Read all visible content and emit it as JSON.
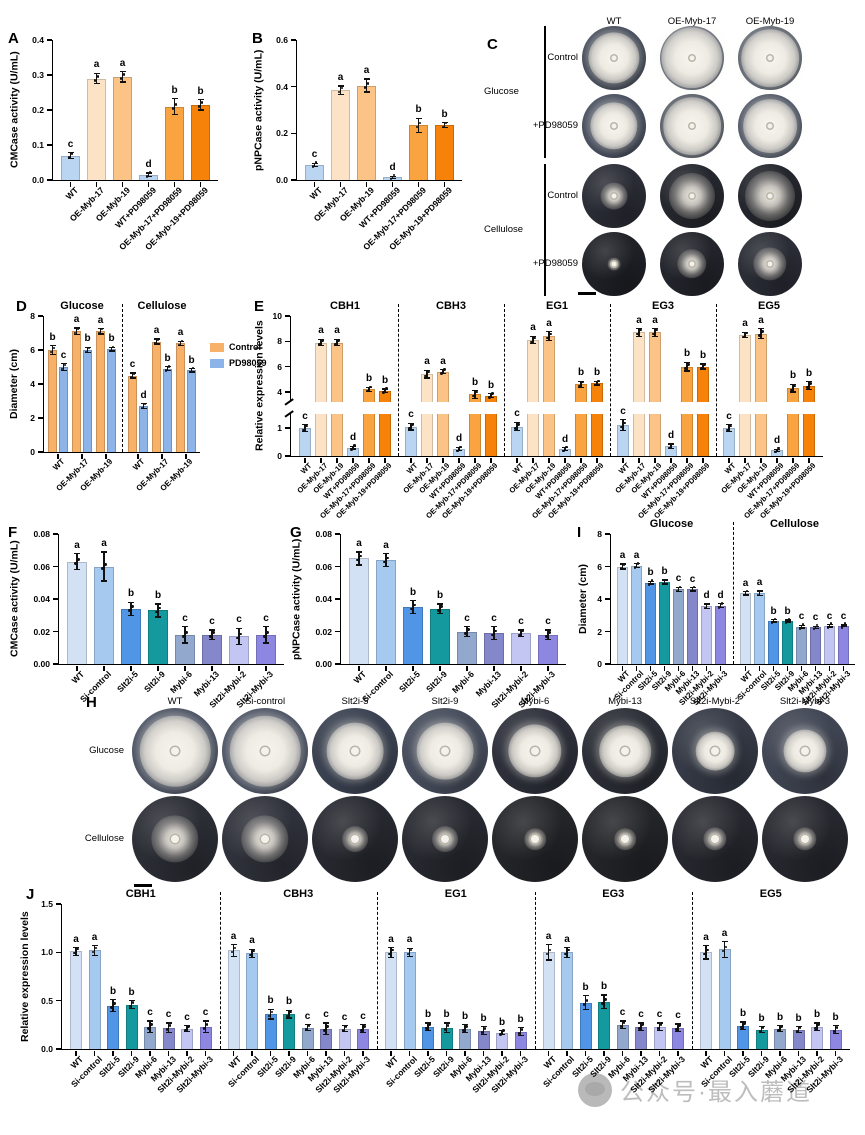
{
  "watermark": {
    "text": "公众号·最入蘑道"
  },
  "colors": {
    "treat6": [
      "#b9d5f2",
      "#fde3c6",
      "#fbc386",
      "#b9d5f2",
      "#f9a440",
      "#f6820a"
    ],
    "sil8": [
      "#d3e1f5",
      "#a6c9f0",
      "#5095e6",
      "#149a9e",
      "#92a8cd",
      "#8487ca",
      "#c3c6f3",
      "#8d87e2"
    ],
    "control_orange": "#f8b169",
    "pd_blue": "#8cb4e8"
  },
  "categories": {
    "treat6": [
      "WT",
      "OE-Myb-17",
      "OE-Myb-19",
      "WT+PD98059",
      "OE-Myb-17+PD98059",
      "OE-Myb-19+PD98059"
    ],
    "sil8": [
      "WT",
      "Si-control",
      "Slt2i-5",
      "Slt2i-9",
      "Mybi-6",
      "Mybi-13",
      "Slt2i-Mybi-2",
      "Slt2i-Mybi-3"
    ]
  },
  "chart_data": [
    {
      "panel": "A",
      "type": "bar",
      "ylabel": "CMCase activity (U/mL)",
      "ylim": [
        0,
        0.4
      ],
      "yticks": [
        "0.0",
        "0.1",
        "0.2",
        "0.3",
        "0.4"
      ],
      "palette": "treat6",
      "groups": [
        {
          "title": "",
          "categories_ref": "treat6",
          "values": [
            0.07,
            0.29,
            0.295,
            0.015,
            0.21,
            0.215
          ],
          "errors": [
            0.008,
            0.015,
            0.015,
            0.005,
            0.022,
            0.015
          ],
          "letters": [
            "c",
            "a",
            "a",
            "d",
            "b",
            "b"
          ]
        }
      ]
    },
    {
      "panel": "B",
      "type": "bar",
      "ylabel": "pNPCase activity (U/mL)",
      "ylim": [
        0,
        0.6
      ],
      "yticks": [
        "0.0",
        "0.2",
        "0.4",
        "0.6"
      ],
      "palette": "treat6",
      "groups": [
        {
          "title": "",
          "categories_ref": "treat6",
          "values": [
            0.065,
            0.385,
            0.405,
            0.012,
            0.235,
            0.235
          ],
          "errors": [
            0.006,
            0.018,
            0.028,
            0.004,
            0.03,
            0.01
          ],
          "letters": [
            "c",
            "a",
            "a",
            "d",
            "b",
            "b"
          ]
        }
      ]
    },
    {
      "panel": "D",
      "type": "bar-grouped",
      "ylabel": "Diameter (cm)",
      "ylim": [
        0,
        8
      ],
      "yticks": [
        "0",
        "2",
        "4",
        "6",
        "8"
      ],
      "legend": [
        {
          "label": "Control",
          "color": "#f8b169"
        },
        {
          "label": "PD98059",
          "color": "#8cb4e8"
        }
      ],
      "groups": [
        {
          "title": "Glucose",
          "categories": [
            "WT",
            "OE-Myb-17",
            "OE-Myb-19"
          ],
          "series": [
            {
              "name": "Control",
              "color": "#f8b169",
              "values": [
                6.0,
                7.1,
                7.1
              ],
              "errors": [
                0.25,
                0.2,
                0.15
              ],
              "letters": [
                "b",
                "a",
                "a"
              ]
            },
            {
              "name": "PD98059",
              "color": "#8cb4e8",
              "values": [
                5.0,
                6.0,
                6.05
              ],
              "errors": [
                0.2,
                0.15,
                0.1
              ],
              "letters": [
                "c",
                "b",
                "b"
              ]
            }
          ]
        },
        {
          "title": "Cellulose",
          "categories": [
            "WT",
            "OE-Myb-17",
            "OE-Myb-19"
          ],
          "series": [
            {
              "name": "Control",
              "color": "#f8b169",
              "values": [
                4.5,
                6.5,
                6.4
              ],
              "errors": [
                0.15,
                0.15,
                0.12
              ],
              "letters": [
                "c",
                "a",
                "a"
              ]
            },
            {
              "name": "PD98059",
              "color": "#8cb4e8",
              "values": [
                2.7,
                4.9,
                4.8
              ],
              "errors": [
                0.15,
                0.12,
                0.1
              ],
              "letters": [
                "d",
                "b",
                "b"
              ]
            }
          ]
        }
      ]
    },
    {
      "panel": "E",
      "type": "bar",
      "ylabel": "Relative expression levels",
      "ylim": [
        0,
        10
      ],
      "yticks": [
        "0",
        "1",
        "4",
        "6",
        "8",
        "10"
      ],
      "axis_break": {
        "lower_max": 1.5,
        "upper_min": 3.2
      },
      "palette": "treat6",
      "groups": [
        {
          "title": "CBH1",
          "categories_ref": "treat6",
          "values": [
            1.0,
            7.9,
            7.9,
            0.3,
            4.2,
            4.1
          ],
          "errors": [
            0.12,
            0.25,
            0.25,
            0.05,
            0.15,
            0.12
          ],
          "letters": [
            "c",
            "a",
            "a",
            "d",
            "b",
            "b"
          ]
        },
        {
          "title": "CBH3",
          "categories_ref": "treat6",
          "values": [
            1.05,
            5.4,
            5.6,
            0.25,
            3.8,
            3.7
          ],
          "errors": [
            0.12,
            0.3,
            0.15,
            0.06,
            0.3,
            0.15
          ],
          "letters": [
            "c",
            "a",
            "a",
            "d",
            "b",
            "b"
          ]
        },
        {
          "title": "EG1",
          "categories_ref": "treat6",
          "values": [
            1.05,
            8.1,
            8.4,
            0.25,
            4.6,
            4.7
          ],
          "errors": [
            0.15,
            0.3,
            0.35,
            0.05,
            0.25,
            0.15
          ],
          "letters": [
            "c",
            "a",
            "a",
            "d",
            "b",
            "b"
          ]
        },
        {
          "title": "EG3",
          "categories_ref": "treat6",
          "values": [
            1.1,
            8.7,
            8.7,
            0.35,
            6.0,
            6.0
          ],
          "errors": [
            0.2,
            0.3,
            0.3,
            0.08,
            0.35,
            0.2
          ],
          "letters": [
            "c",
            "a",
            "a",
            "d",
            "b",
            "b"
          ]
        },
        {
          "title": "EG5",
          "categories_ref": "treat6",
          "values": [
            1.0,
            8.5,
            8.6,
            0.2,
            4.3,
            4.5
          ],
          "errors": [
            0.12,
            0.2,
            0.4,
            0.04,
            0.3,
            0.3
          ],
          "letters": [
            "c",
            "a",
            "a",
            "d",
            "b",
            "b"
          ]
        }
      ]
    },
    {
      "panel": "F",
      "type": "bar",
      "ylabel": "CMCase activity (U/mL)",
      "ylim": [
        0,
        0.08
      ],
      "yticks": [
        "0.00",
        "0.02",
        "0.04",
        "0.06",
        "0.08"
      ],
      "palette": "sil8",
      "groups": [
        {
          "title": "",
          "categories_ref": "sil8",
          "values": [
            0.063,
            0.06,
            0.034,
            0.033,
            0.018,
            0.018,
            0.017,
            0.018
          ],
          "errors": [
            0.005,
            0.009,
            0.004,
            0.004,
            0.005,
            0.003,
            0.005,
            0.005
          ],
          "letters": [
            "a",
            "a",
            "b",
            "b",
            "c",
            "c",
            "c",
            "c"
          ]
        }
      ]
    },
    {
      "panel": "G",
      "type": "bar",
      "ylabel": "pNPCase activity (U/mL)",
      "ylim": [
        0,
        0.08
      ],
      "yticks": [
        "0.00",
        "0.02",
        "0.04",
        "0.06",
        "0.08"
      ],
      "palette": "sil8",
      "groups": [
        {
          "title": "",
          "categories_ref": "sil8",
          "values": [
            0.065,
            0.064,
            0.035,
            0.034,
            0.02,
            0.019,
            0.019,
            0.018
          ],
          "errors": [
            0.004,
            0.004,
            0.004,
            0.003,
            0.003,
            0.004,
            0.002,
            0.003
          ],
          "letters": [
            "a",
            "a",
            "b",
            "b",
            "c",
            "c",
            "c",
            "c"
          ]
        }
      ]
    },
    {
      "panel": "I",
      "type": "bar",
      "ylabel": "Diameter (cm)",
      "ylim": [
        0,
        8
      ],
      "yticks": [
        "0",
        "2",
        "4",
        "6",
        "8"
      ],
      "palette": "sil8",
      "groups": [
        {
          "title": "Glucose",
          "categories_ref": "sil8",
          "values": [
            6.0,
            6.05,
            5.0,
            5.05,
            4.6,
            4.6,
            3.55,
            3.6
          ],
          "errors": [
            0.15,
            0.12,
            0.08,
            0.12,
            0.12,
            0.1,
            0.15,
            0.12
          ],
          "letters": [
            "a",
            "a",
            "b",
            "b",
            "c",
            "c",
            "d",
            "d"
          ]
        },
        {
          "title": "Cellulose",
          "categories_ref": "sil8",
          "values": [
            4.35,
            4.35,
            2.65,
            2.65,
            2.3,
            2.25,
            2.35,
            2.35
          ],
          "errors": [
            0.1,
            0.15,
            0.07,
            0.06,
            0.08,
            0.06,
            0.07,
            0.06
          ],
          "letters": [
            "a",
            "a",
            "b",
            "b",
            "c",
            "c",
            "c",
            "c"
          ]
        }
      ]
    },
    {
      "panel": "J",
      "type": "bar",
      "ylabel": "Relative expression levels",
      "ylim": [
        0,
        1.5
      ],
      "yticks": [
        "0.0",
        "0.5",
        "1.0",
        "1.5"
      ],
      "palette": "sil8",
      "groups": [
        {
          "title": "CBH1",
          "categories_ref": "sil8",
          "values": [
            1.01,
            1.02,
            0.45,
            0.46,
            0.23,
            0.22,
            0.21,
            0.23
          ],
          "errors": [
            0.04,
            0.05,
            0.06,
            0.04,
            0.06,
            0.05,
            0.03,
            0.06
          ],
          "letters": [
            "a",
            "a",
            "b",
            "b",
            "c",
            "c",
            "c",
            "c"
          ]
        },
        {
          "title": "CBH3",
          "categories_ref": "sil8",
          "values": [
            1.02,
            0.99,
            0.36,
            0.36,
            0.22,
            0.21,
            0.21,
            0.21
          ],
          "errors": [
            0.06,
            0.04,
            0.05,
            0.04,
            0.03,
            0.06,
            0.03,
            0.04
          ],
          "letters": [
            "a",
            "a",
            "b",
            "b",
            "c",
            "c",
            "c",
            "c"
          ]
        },
        {
          "title": "EG1",
          "categories_ref": "sil8",
          "values": [
            1.0,
            1.0,
            0.23,
            0.22,
            0.21,
            0.19,
            0.17,
            0.18
          ],
          "errors": [
            0.05,
            0.04,
            0.04,
            0.05,
            0.04,
            0.04,
            0.02,
            0.04
          ],
          "letters": [
            "a",
            "a",
            "b",
            "b",
            "b",
            "b",
            "b",
            "b"
          ]
        },
        {
          "title": "EG3",
          "categories_ref": "sil8",
          "values": [
            1.0,
            1.0,
            0.48,
            0.49,
            0.25,
            0.23,
            0.23,
            0.22
          ],
          "errors": [
            0.08,
            0.05,
            0.07,
            0.07,
            0.04,
            0.04,
            0.04,
            0.04
          ],
          "letters": [
            "a",
            "a",
            "b",
            "b",
            "c",
            "c",
            "c",
            "c"
          ]
        },
        {
          "title": "EG5",
          "categories_ref": "sil8",
          "values": [
            1.0,
            1.03,
            0.24,
            0.2,
            0.21,
            0.2,
            0.23,
            0.2
          ],
          "errors": [
            0.07,
            0.08,
            0.04,
            0.03,
            0.03,
            0.03,
            0.04,
            0.04
          ],
          "letters": [
            "a",
            "a",
            "b",
            "b",
            "b",
            "b",
            "b",
            "b"
          ]
        }
      ]
    }
  ],
  "photo_panels": [
    {
      "panel": "C",
      "columns": [
        "WT",
        "OE-Myb-17",
        "OE-Myb-19"
      ],
      "media_groups": [
        {
          "name": "Glucose",
          "sparse": false,
          "rows": [
            {
              "label": "Control",
              "colony_sizes": [
                0.8,
                0.96,
                0.9
              ],
              "dish_colors": [
                "#3f4654",
                "#4e5565",
                "#4b5260"
              ]
            },
            {
              "label": "+PD98059",
              "colony_sizes": [
                0.74,
                0.9,
                0.84
              ],
              "dish_colors": [
                "#444b5b",
                "#3e4553",
                "#454c5c"
              ]
            }
          ]
        },
        {
          "name": "Cellulose",
          "sparse": true,
          "rows": [
            {
              "label": "Control",
              "colony_sizes": [
                0.42,
                0.72,
                0.78
              ],
              "dish_colors": [
                "#2b2d36",
                "#25272e",
                "#24262d"
              ]
            },
            {
              "label": "+PD98059",
              "colony_sizes": [
                0.2,
                0.46,
                0.52
              ],
              "dish_colors": [
                "#1f2127",
                "#23252c",
                "#2b2d36"
              ]
            }
          ]
        }
      ],
      "has_scale_bar": true
    },
    {
      "panel": "H",
      "columns": [
        "WT",
        "Si-control",
        "Slt2i-5",
        "Slt2i-9",
        "Mybi-6",
        "Mybi-13",
        "Slt2i-Mybi-2",
        "Slt2i-Mybi-3"
      ],
      "rows": [
        {
          "label": "Glucose",
          "sparse": false,
          "colony_sizes": [
            0.82,
            0.82,
            0.66,
            0.66,
            0.62,
            0.6,
            0.45,
            0.5
          ],
          "dish_colors": [
            "#495061",
            "#4a5162",
            "#3a4150",
            "#464c5b",
            "#2d303a",
            "#2b2e36",
            "#353a46",
            "#404553"
          ]
        },
        {
          "label": "Cellulose",
          "sparse": true,
          "colony_sizes": [
            0.55,
            0.55,
            0.3,
            0.3,
            0.25,
            0.25,
            0.27,
            0.27
          ],
          "dish_colors": [
            "#2c2e36",
            "#30323b",
            "#272930",
            "#272930",
            "#242529",
            "#242529",
            "#27282f",
            "#27282f"
          ]
        }
      ],
      "has_scale_bar": true
    }
  ]
}
